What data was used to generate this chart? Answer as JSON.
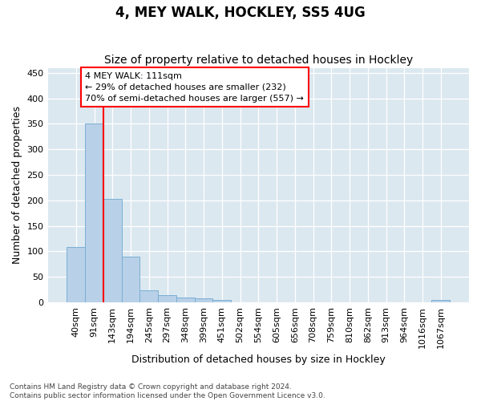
{
  "title": "4, MEY WALK, HOCKLEY, SS5 4UG",
  "subtitle": "Size of property relative to detached houses in Hockley",
  "xlabel": "Distribution of detached houses by size in Hockley",
  "ylabel": "Number of detached properties",
  "categories": [
    "40sqm",
    "91sqm",
    "143sqm",
    "194sqm",
    "245sqm",
    "297sqm",
    "348sqm",
    "399sqm",
    "451sqm",
    "502sqm",
    "554sqm",
    "605sqm",
    "656sqm",
    "708sqm",
    "759sqm",
    "810sqm",
    "862sqm",
    "913sqm",
    "964sqm",
    "1016sqm",
    "1067sqm"
  ],
  "values": [
    108,
    350,
    203,
    89,
    23,
    14,
    9,
    8,
    4,
    0,
    0,
    0,
    0,
    0,
    0,
    0,
    0,
    0,
    0,
    0,
    5
  ],
  "bar_color": "#b8d0e8",
  "bar_edge_color": "#7aafd4",
  "annotation_text": "4 MEY WALK: 111sqm\n← 29% of detached houses are smaller (232)\n70% of semi-detached houses are larger (557) →",
  "annotation_box_color": "white",
  "annotation_box_edge_color": "red",
  "ylim": [
    0,
    460
  ],
  "yticks": [
    0,
    50,
    100,
    150,
    200,
    250,
    300,
    350,
    400,
    450
  ],
  "plot_bg_color": "#dce8f0",
  "fig_bg_color": "#ffffff",
  "grid_color": "#ffffff",
  "title_fontsize": 12,
  "subtitle_fontsize": 10,
  "axis_label_fontsize": 9,
  "tick_fontsize": 8,
  "footer_text": "Contains HM Land Registry data © Crown copyright and database right 2024.\nContains public sector information licensed under the Open Government Licence v3.0."
}
